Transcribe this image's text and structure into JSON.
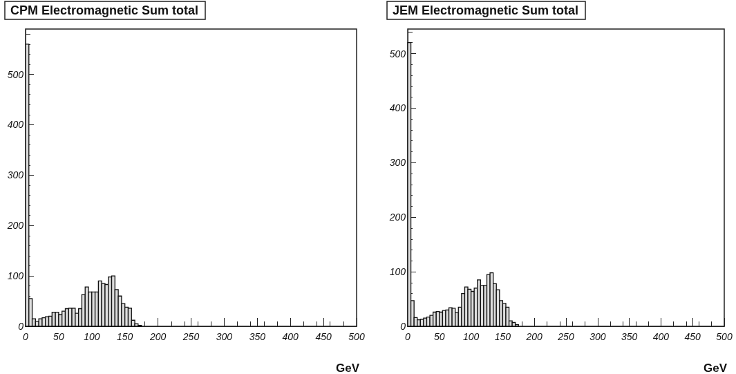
{
  "chart_data": [
    {
      "type": "histogram",
      "title": "CPM Electromagnetic Sum total",
      "xlabel": "GeV",
      "color": "#dddddd",
      "bins": [
        0,
        5,
        10,
        15,
        20,
        25,
        30,
        35,
        40,
        45,
        50,
        55,
        60,
        65,
        70,
        75,
        80,
        85,
        90,
        95,
        100,
        105,
        110,
        115,
        120,
        125,
        130,
        135,
        140,
        145,
        150,
        155,
        160,
        165,
        170,
        175,
        180,
        185,
        190,
        195,
        200,
        205,
        210,
        215,
        220,
        225,
        230,
        235,
        240,
        245,
        250,
        255,
        260,
        265,
        270,
        275,
        280,
        285,
        290,
        295,
        300,
        305,
        310,
        315,
        320,
        325,
        330,
        335,
        340,
        345,
        350,
        355,
        360,
        365,
        370,
        375,
        380,
        385,
        390,
        395,
        400,
        405,
        410,
        415,
        420,
        425,
        430,
        435,
        440,
        445,
        450,
        455,
        460,
        465,
        470,
        475,
        480,
        485,
        490,
        495,
        500
      ],
      "values": [
        560,
        55,
        15,
        10,
        15,
        17,
        19,
        20,
        28,
        28,
        23,
        30,
        35,
        36,
        36,
        26,
        35,
        63,
        78,
        68,
        68,
        68,
        90,
        85,
        83,
        98,
        100,
        73,
        60,
        45,
        38,
        36,
        12,
        5,
        2,
        0,
        0,
        0,
        0,
        0,
        0,
        0,
        0,
        0,
        0,
        0,
        0,
        0,
        0,
        0,
        0,
        0,
        0,
        0,
        0,
        0,
        0,
        0,
        0,
        0,
        0,
        0,
        0,
        0,
        0,
        0,
        0,
        0,
        0,
        0,
        0,
        0,
        0,
        0,
        0,
        0,
        0,
        0,
        0,
        0,
        0,
        0,
        0,
        0,
        0,
        0,
        0,
        0,
        0,
        0,
        0,
        0,
        0,
        0,
        0,
        0,
        0,
        0,
        0,
        0
      ],
      "xlim": [
        0,
        500
      ],
      "xticks": [
        0,
        50,
        100,
        150,
        200,
        250,
        300,
        350,
        400,
        450,
        500
      ],
      "ylim": [
        0,
        590
      ],
      "yticks": [
        0,
        100,
        200,
        300,
        400,
        500
      ],
      "grid": false
    },
    {
      "type": "histogram",
      "title": "JEM Electromagnetic Sum total",
      "xlabel": "GeV",
      "color": "#dddddd",
      "bins": [
        0,
        5,
        10,
        15,
        20,
        25,
        30,
        35,
        40,
        45,
        50,
        55,
        60,
        65,
        70,
        75,
        80,
        85,
        90,
        95,
        100,
        105,
        110,
        115,
        120,
        125,
        130,
        135,
        140,
        145,
        150,
        155,
        160,
        165,
        170,
        175,
        180,
        185,
        190,
        195,
        200,
        205,
        210,
        215,
        220,
        225,
        230,
        235,
        240,
        245,
        250,
        255,
        260,
        265,
        270,
        275,
        280,
        285,
        290,
        295,
        300,
        305,
        310,
        315,
        320,
        325,
        330,
        335,
        340,
        345,
        350,
        355,
        360,
        365,
        370,
        375,
        380,
        385,
        390,
        395,
        400,
        405,
        410,
        415,
        420,
        425,
        430,
        435,
        440,
        445,
        450,
        455,
        460,
        465,
        470,
        475,
        480,
        485,
        490,
        495,
        500
      ],
      "values": [
        520,
        47,
        16,
        12,
        13,
        15,
        17,
        20,
        26,
        27,
        26,
        29,
        30,
        34,
        33,
        25,
        35,
        60,
        72,
        68,
        64,
        70,
        85,
        75,
        75,
        95,
        98,
        78,
        67,
        47,
        42,
        35,
        10,
        7,
        3,
        0,
        0,
        0,
        0,
        0,
        0,
        0,
        0,
        0,
        0,
        0,
        0,
        0,
        0,
        0,
        0,
        0,
        0,
        0,
        0,
        0,
        0,
        0,
        0,
        0,
        0,
        0,
        0,
        0,
        0,
        0,
        0,
        0,
        0,
        0,
        0,
        0,
        0,
        0,
        0,
        0,
        0,
        0,
        0,
        0,
        0,
        0,
        0,
        0,
        0,
        0,
        0,
        0,
        0,
        0,
        0,
        0,
        0,
        0,
        0,
        0,
        0,
        0,
        0,
        0
      ],
      "xlim": [
        0,
        500
      ],
      "xticks": [
        0,
        50,
        100,
        150,
        200,
        250,
        300,
        350,
        400,
        450,
        500
      ],
      "ylim": [
        0,
        545
      ],
      "yticks": [
        0,
        100,
        200,
        300,
        400,
        500
      ],
      "grid": false
    }
  ]
}
